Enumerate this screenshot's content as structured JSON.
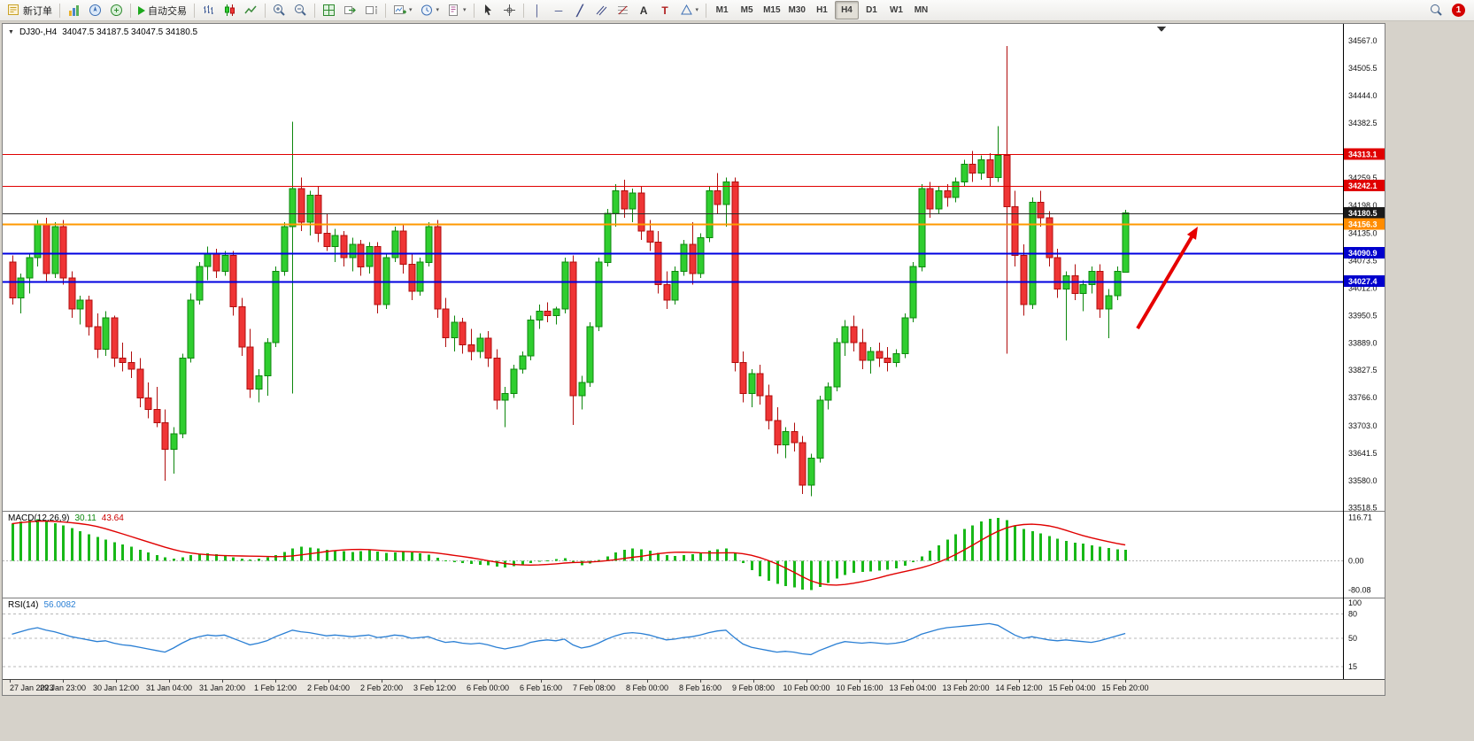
{
  "toolbar": {
    "new_order_label": "新订单",
    "autotrading_label": "自动交易",
    "timeframes": [
      "M1",
      "M5",
      "M15",
      "M30",
      "H1",
      "H4",
      "D1",
      "W1",
      "MN"
    ],
    "active_timeframe": "H4",
    "notification_count": "1",
    "icon_glyphs": {
      "caret": "▾",
      "vline": "│",
      "hline": "─",
      "trendline": "╱",
      "text_tool": "A",
      "label_tool": "T",
      "new_chart_plus": "+"
    }
  },
  "chart_header": {
    "collapse_arrow": "▼",
    "symbol_period": "DJ30-,H4",
    "ohlc_text": "34047.5 34187.5 34047.5 34180.5"
  },
  "indicators": {
    "macd_label": "MACD(12,26,9)",
    "macd_main_value": "30.11",
    "macd_signal_value": "43.64",
    "rsi_label": "RSI(14)",
    "rsi_value": "56.0082"
  },
  "chart_data": {
    "type": "candlestick",
    "symbol": "DJ30-",
    "timeframe": "H4",
    "ohlc_current": {
      "open": 34047.5,
      "high": 34187.5,
      "low": 34047.5,
      "close": 34180.5
    },
    "y_axis": {
      "max": 34605,
      "min": 33512,
      "ticks": [
        "34567.0",
        "34505.5",
        "34444.0",
        "34382.5",
        "34259.5",
        "34198.0",
        "34135.0",
        "34073.5",
        "34012.0",
        "33950.5",
        "33889.0",
        "33827.5",
        "33766.0",
        "33703.0",
        "33641.5",
        "33580.0",
        "33518.5"
      ]
    },
    "price_lines": [
      {
        "price": 34313.1,
        "label": "34313.1",
        "color": "#e00000",
        "badge": "#e00000",
        "width": 1
      },
      {
        "price": 34242.1,
        "label": "34242.1",
        "color": "#e00000",
        "badge": "#e00000",
        "width": 1
      },
      {
        "price": 34180.5,
        "label": "34180.5",
        "color": "#2a2a2a",
        "badge": "#1a1a1a",
        "width": 1
      },
      {
        "price": 34156.3,
        "label": "34156.3",
        "color": "#ff9900",
        "badge": "#ff8c00",
        "width": 2
      },
      {
        "price": 34090.9,
        "label": "34090.9",
        "color": "#0000e0",
        "badge": "#0000cd",
        "width": 2
      },
      {
        "price": 34027.4,
        "label": "34027.4",
        "color": "#0000e0",
        "badge": "#0000cd",
        "width": 2
      }
    ],
    "candle_colors": {
      "up_fill": "#2fce2f",
      "up_stroke": "#0c870c",
      "down_fill": "#ef3535",
      "down_stroke": "#b00d0d"
    },
    "candles": [
      [
        34070,
        34085,
        33975,
        33990
      ],
      [
        33990,
        34045,
        33955,
        34035
      ],
      [
        34035,
        34090,
        34000,
        34080
      ],
      [
        34080,
        34165,
        34060,
        34155
      ],
      [
        34155,
        34170,
        34025,
        34045
      ],
      [
        34045,
        34160,
        34035,
        34150
      ],
      [
        34150,
        34165,
        34020,
        34035
      ],
      [
        34035,
        34050,
        33945,
        33965
      ],
      [
        33965,
        33995,
        33930,
        33985
      ],
      [
        33985,
        33995,
        33905,
        33925
      ],
      [
        33925,
        33955,
        33855,
        33875
      ],
      [
        33875,
        33960,
        33860,
        33945
      ],
      [
        33945,
        33950,
        33835,
        33855
      ],
      [
        33855,
        33890,
        33825,
        33845
      ],
      [
        33845,
        33870,
        33810,
        33830
      ],
      [
        33830,
        33855,
        33745,
        33765
      ],
      [
        33765,
        33800,
        33720,
        33740
      ],
      [
        33740,
        33790,
        33700,
        33710
      ],
      [
        33710,
        33740,
        33580,
        33650
      ],
      [
        33650,
        33700,
        33595,
        33685
      ],
      [
        33685,
        33865,
        33675,
        33855
      ],
      [
        33855,
        34000,
        33845,
        33985
      ],
      [
        33985,
        34070,
        33975,
        34060
      ],
      [
        34060,
        34105,
        34030,
        34090
      ],
      [
        34090,
        34100,
        34035,
        34050
      ],
      [
        34050,
        34095,
        34040,
        34085
      ],
      [
        34085,
        34095,
        33950,
        33970
      ],
      [
        33970,
        33990,
        33860,
        33880
      ],
      [
        33880,
        33920,
        33765,
        33785
      ],
      [
        33785,
        33830,
        33755,
        33815
      ],
      [
        33815,
        33900,
        33770,
        33890
      ],
      [
        33890,
        34060,
        33880,
        34050
      ],
      [
        34050,
        34160,
        34040,
        34150
      ],
      [
        34150,
        34385,
        33775,
        34235
      ],
      [
        34235,
        34260,
        34140,
        34160
      ],
      [
        34160,
        34230,
        34130,
        34220
      ],
      [
        34220,
        34240,
        34115,
        34135
      ],
      [
        34135,
        34180,
        34095,
        34105
      ],
      [
        34105,
        34145,
        34070,
        34130
      ],
      [
        34130,
        34140,
        34060,
        34080
      ],
      [
        34080,
        34125,
        34050,
        34110
      ],
      [
        34110,
        34120,
        34040,
        34060
      ],
      [
        34060,
        34115,
        34045,
        34105
      ],
      [
        34105,
        34115,
        33955,
        33975
      ],
      [
        33975,
        34090,
        33965,
        34080
      ],
      [
        34080,
        34150,
        34070,
        34140
      ],
      [
        34140,
        34155,
        34045,
        34065
      ],
      [
        34065,
        34090,
        33985,
        34005
      ],
      [
        34005,
        34080,
        33995,
        34070
      ],
      [
        34070,
        34160,
        34060,
        34150
      ],
      [
        34150,
        34165,
        33945,
        33965
      ],
      [
        33965,
        33990,
        33880,
        33900
      ],
      [
        33900,
        33950,
        33870,
        33935
      ],
      [
        33935,
        33945,
        33865,
        33885
      ],
      [
        33885,
        33920,
        33850,
        33870
      ],
      [
        33870,
        33910,
        33855,
        33900
      ],
      [
        33900,
        33915,
        33835,
        33855
      ],
      [
        33855,
        33875,
        33740,
        33760
      ],
      [
        33760,
        33790,
        33700,
        33775
      ],
      [
        33775,
        33840,
        33765,
        33830
      ],
      [
        33830,
        33870,
        33820,
        33860
      ],
      [
        33860,
        33950,
        33850,
        33940
      ],
      [
        33940,
        33975,
        33920,
        33960
      ],
      [
        33960,
        33980,
        33935,
        33950
      ],
      [
        33950,
        33970,
        33930,
        33965
      ],
      [
        33965,
        34080,
        33955,
        34070
      ],
      [
        34070,
        34085,
        33705,
        33770
      ],
      [
        33770,
        33815,
        33740,
        33800
      ],
      [
        33800,
        33935,
        33790,
        33925
      ],
      [
        33925,
        34080,
        33915,
        34070
      ],
      [
        34070,
        34190,
        34060,
        34180
      ],
      [
        34180,
        34245,
        34150,
        34230
      ],
      [
        34230,
        34255,
        34170,
        34190
      ],
      [
        34190,
        34235,
        34160,
        34225
      ],
      [
        34225,
        34240,
        34120,
        34140
      ],
      [
        34140,
        34165,
        34095,
        34115
      ],
      [
        34115,
        34140,
        34000,
        34020
      ],
      [
        34020,
        34050,
        33965,
        33985
      ],
      [
        33985,
        34060,
        33975,
        34050
      ],
      [
        34050,
        34120,
        34040,
        34110
      ],
      [
        34110,
        34160,
        34020,
        34045
      ],
      [
        34045,
        34135,
        34035,
        34125
      ],
      [
        34125,
        34240,
        34115,
        34230
      ],
      [
        34230,
        34270,
        34180,
        34200
      ],
      [
        34200,
        34260,
        34150,
        34250
      ],
      [
        34250,
        34260,
        33825,
        33845
      ],
      [
        33845,
        33870,
        33755,
        33775
      ],
      [
        33775,
        33830,
        33745,
        33820
      ],
      [
        33820,
        33840,
        33750,
        33770
      ],
      [
        33770,
        33795,
        33695,
        33715
      ],
      [
        33715,
        33745,
        33640,
        33660
      ],
      [
        33660,
        33700,
        33630,
        33690
      ],
      [
        33690,
        33710,
        33645,
        33665
      ],
      [
        33665,
        33680,
        33550,
        33570
      ],
      [
        33570,
        33640,
        33545,
        33630
      ],
      [
        33630,
        33770,
        33620,
        33760
      ],
      [
        33760,
        33800,
        33740,
        33790
      ],
      [
        33790,
        33900,
        33780,
        33890
      ],
      [
        33890,
        33940,
        33860,
        33925
      ],
      [
        33925,
        33950,
        33870,
        33890
      ],
      [
        33890,
        33920,
        33830,
        33850
      ],
      [
        33850,
        33880,
        33820,
        33870
      ],
      [
        33870,
        33890,
        33835,
        33855
      ],
      [
        33855,
        33880,
        33825,
        33845
      ],
      [
        33845,
        33875,
        33835,
        33865
      ],
      [
        33865,
        33955,
        33855,
        33945
      ],
      [
        33945,
        34070,
        33935,
        34060
      ],
      [
        34060,
        34245,
        34050,
        34235
      ],
      [
        34235,
        34250,
        34170,
        34190
      ],
      [
        34190,
        34240,
        34180,
        34230
      ],
      [
        34230,
        34245,
        34195,
        34215
      ],
      [
        34215,
        34260,
        34205,
        34250
      ],
      [
        34250,
        34300,
        34240,
        34290
      ],
      [
        34290,
        34320,
        34250,
        34270
      ],
      [
        34270,
        34310,
        34255,
        34300
      ],
      [
        34300,
        34315,
        34240,
        34260
      ],
      [
        34260,
        34375,
        34250,
        34310
      ],
      [
        34310,
        34555,
        33865,
        34195
      ],
      [
        34195,
        34230,
        34060,
        34085
      ],
      [
        34085,
        34110,
        33950,
        33975
      ],
      [
        33975,
        34215,
        33965,
        34205
      ],
      [
        34205,
        34230,
        34150,
        34170
      ],
      [
        34170,
        34185,
        34060,
        34080
      ],
      [
        34080,
        34100,
        33990,
        34010
      ],
      [
        34010,
        34050,
        33895,
        34040
      ],
      [
        34040,
        34065,
        33985,
        34000
      ],
      [
        34000,
        34030,
        33960,
        34020
      ],
      [
        34020,
        34060,
        34000,
        34050
      ],
      [
        34050,
        34065,
        33945,
        33965
      ],
      [
        33965,
        34010,
        33900,
        33995
      ],
      [
        33995,
        34060,
        33985,
        34050
      ],
      [
        34047.5,
        34187.5,
        34047.5,
        34180.5
      ]
    ],
    "time_labels": [
      "27 Jan 2023",
      "29 Jan 23:00",
      "30 Jan 12:00",
      "31 Jan 04:00",
      "31 Jan 20:00",
      "1 Feb 12:00",
      "2 Feb 04:00",
      "2 Feb 20:00",
      "3 Feb 12:00",
      "6 Feb 00:00",
      "6 Feb 16:00",
      "7 Feb 08:00",
      "8 Feb 00:00",
      "8 Feb 16:00",
      "9 Feb 08:00",
      "10 Feb 00:00",
      "10 Feb 16:00",
      "13 Feb 04:00",
      "13 Feb 20:00",
      "14 Feb 12:00",
      "15 Feb 04:00",
      "15 Feb 20:00"
    ],
    "macd": {
      "title": "MACD(12,26,9)",
      "main": 30.11,
      "signal": 43.64,
      "scale_labels": [
        "116.71",
        "0.00",
        "-80.08"
      ],
      "range": {
        "max": 135,
        "min": -100
      },
      "histogram_color": "#18b818",
      "signal_color": "#e00000",
      "histogram": [
        100,
        106,
        110,
        112,
        108,
        102,
        96,
        88,
        80,
        72,
        64,
        57,
        50,
        44,
        38,
        30,
        22,
        15,
        9,
        6,
        9,
        15,
        18,
        20,
        18,
        14,
        9,
        5,
        3,
        5,
        9,
        15,
        23,
        33,
        38,
        36,
        33,
        30,
        28,
        26,
        24,
        26,
        28,
        25,
        21,
        22,
        24,
        22,
        20,
        16,
        8,
        1,
        -4,
        -7,
        -9,
        -11,
        -13,
        -16,
        -18,
        -15,
        -11,
        -7,
        -3,
        1,
        4,
        7,
        -4,
        -12,
        -8,
        2,
        12,
        22,
        30,
        33,
        31,
        27,
        21,
        15,
        13,
        15,
        17,
        21,
        27,
        31,
        33,
        20,
        -6,
        -26,
        -42,
        -54,
        -63,
        -69,
        -73,
        -78,
        -80,
        -71,
        -60,
        -48,
        -39,
        -33,
        -31,
        -29,
        -27,
        -25,
        -21,
        -14,
        -4,
        12,
        27,
        42,
        57,
        72,
        86,
        96,
        106,
        113,
        116,
        110,
        96,
        86,
        80,
        74,
        67,
        60,
        54,
        49,
        46,
        42,
        38,
        34,
        31,
        30
      ]
    },
    "rsi": {
      "title": "RSI(14)",
      "value": 56.0082,
      "period": 14,
      "levels": [
        100,
        80,
        50,
        15
      ],
      "line_color": "#2a7fd4",
      "series": [
        55,
        58,
        61,
        63,
        60,
        58,
        55,
        52,
        50,
        48,
        46,
        47,
        44,
        42,
        41,
        39,
        37,
        35,
        33,
        38,
        44,
        49,
        52,
        54,
        53,
        54,
        50,
        46,
        42,
        44,
        47,
        52,
        56,
        60,
        58,
        57,
        55,
        53,
        54,
        53,
        52,
        53,
        54,
        51,
        52,
        54,
        53,
        50,
        51,
        52,
        48,
        45,
        46,
        44,
        43,
        44,
        42,
        39,
        37,
        39,
        41,
        45,
        47,
        48,
        47,
        49,
        42,
        38,
        40,
        44,
        49,
        53,
        56,
        57,
        56,
        54,
        51,
        48,
        49,
        51,
        52,
        54,
        57,
        59,
        60,
        51,
        43,
        39,
        37,
        35,
        33,
        34,
        33,
        31,
        30,
        35,
        39,
        43,
        46,
        45,
        44,
        45,
        44,
        43,
        44,
        46,
        50,
        55,
        58,
        61,
        63,
        64,
        65,
        66,
        67,
        68,
        66,
        60,
        54,
        50,
        52,
        50,
        48,
        47,
        48,
        47,
        46,
        45,
        47,
        50,
        53,
        56
      ]
    },
    "annotation_arrow": {
      "from": [
        1282,
        344
      ],
      "to": [
        1350,
        229
      ],
      "color": "#e60000"
    }
  }
}
